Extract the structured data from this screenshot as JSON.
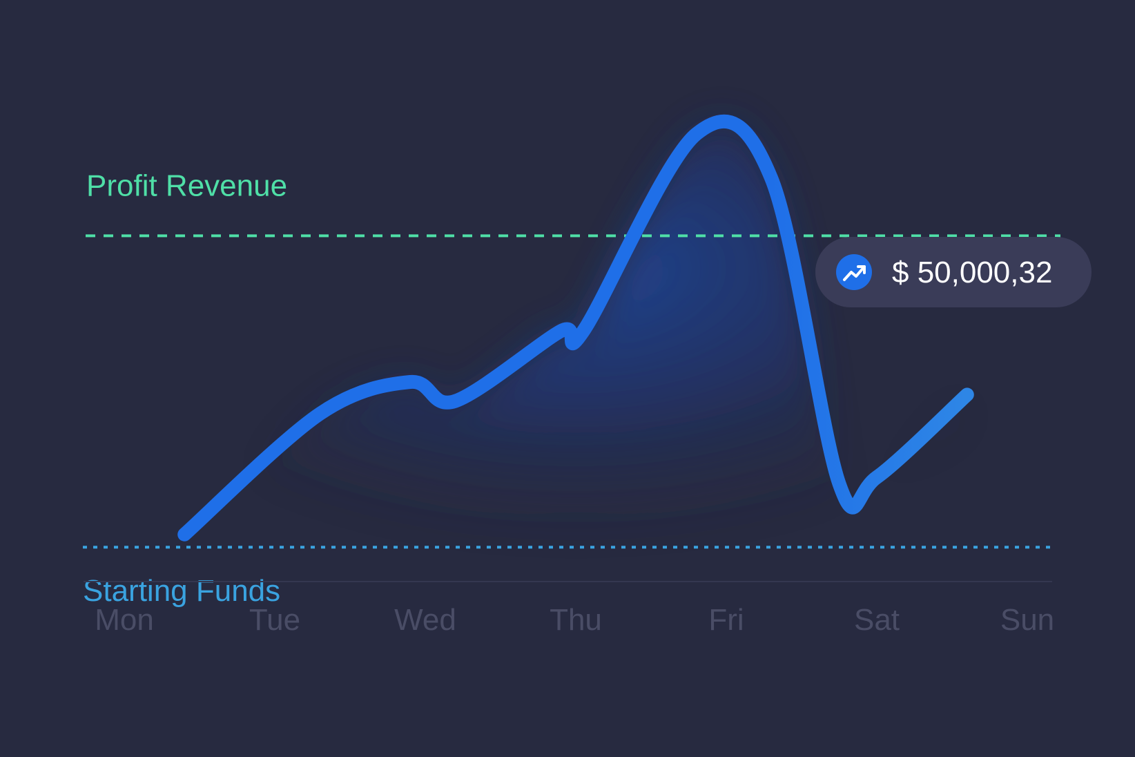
{
  "colors": {
    "background": "#272a40",
    "line": "#1f6fe8",
    "line_end": "#2e86e6",
    "profit_line": "#4fdfa7",
    "starting_line": "#3aa3e0",
    "axis_labels": "#4a4d66",
    "axis_baseline": "#343750",
    "tooltip_bg": "#3a3c58",
    "tooltip_text": "#ffffff",
    "tooltip_icon_bg": "#1f6fe8"
  },
  "reference_lines": {
    "profit": {
      "label": "Profit Revenue",
      "style": "dashed"
    },
    "starting": {
      "label": "Starting Funds",
      "style": "dotted"
    }
  },
  "tooltip": {
    "icon": "trending-up-icon",
    "value": "$ 50,000,32"
  },
  "chart_data": {
    "type": "line",
    "smooth": true,
    "filled_area": true,
    "categories": [
      "Mon",
      "Tue",
      "Wed",
      "Thu",
      "Fri",
      "Sat",
      "Sun"
    ],
    "ylim": [
      0,
      10
    ],
    "grid": false,
    "profit_revenue_level": 7.3,
    "starting_funds_level": 2.4,
    "points": [
      {
        "x": 0.4,
        "y": 2.6
      },
      {
        "x": 1.3,
        "y": 4.5
      },
      {
        "x": 1.9,
        "y": 5.0
      },
      {
        "x": 2.2,
        "y": 4.7
      },
      {
        "x": 2.9,
        "y": 5.8
      },
      {
        "x": 3.05,
        "y": 5.8
      },
      {
        "x": 3.8,
        "y": 8.9
      },
      {
        "x": 4.3,
        "y": 8.2
      },
      {
        "x": 4.75,
        "y": 3.4
      },
      {
        "x": 5.0,
        "y": 3.5
      },
      {
        "x": 5.6,
        "y": 4.8
      }
    ]
  }
}
